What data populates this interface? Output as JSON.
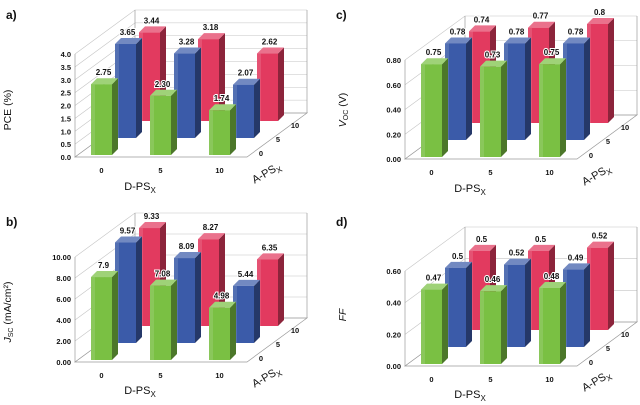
{
  "colors": {
    "green": "#7ac043",
    "blue": "#3b5ba9",
    "red": "#e23a5f",
    "grid": "#c4c4c4",
    "text": "#111111"
  },
  "chart_data": [
    {
      "type": "bar",
      "title": "",
      "panel_label": "a)",
      "ylabel": "PCE (%)",
      "xlabel": "D-PS",
      "xlabel_sub": "X",
      "zlabel": "A-PS",
      "zlabel_sub": "X",
      "categories": [
        "0",
        "5",
        "10"
      ],
      "depth_categories": [
        "0",
        "5",
        "10"
      ],
      "ylim": [
        0,
        4.0
      ],
      "yticks": [
        "0.0",
        "0.5",
        "1.0",
        "1.5",
        "2.0",
        "2.5",
        "3.0",
        "3.5",
        "4.0"
      ],
      "series": [
        {
          "name": "A-PSx 0",
          "color": "green",
          "values": [
            2.75,
            2.3,
            1.74
          ],
          "labels": [
            "2.75",
            "2.30",
            "1.74"
          ]
        },
        {
          "name": "A-PSx 5",
          "color": "blue",
          "values": [
            3.65,
            3.28,
            2.07
          ],
          "labels": [
            "3.65",
            "3.28",
            "2.07"
          ]
        },
        {
          "name": "A-PSx 10",
          "color": "red",
          "values": [
            3.44,
            3.18,
            2.62
          ],
          "labels": [
            "3.44",
            "3.18",
            "2.62"
          ]
        }
      ]
    },
    {
      "type": "bar",
      "title": "",
      "panel_label": "c)",
      "ylabel": "V",
      "ylabel_sub": "OC",
      "ylabel_unit": " (V)",
      "xlabel": "D-PS",
      "xlabel_sub": "X",
      "zlabel": "A-PS",
      "zlabel_sub": "X",
      "categories": [
        "0",
        "5",
        "10"
      ],
      "depth_categories": [
        "0",
        "5",
        "10"
      ],
      "ylim": [
        0,
        0.8
      ],
      "yticks": [
        "0.00",
        "0.20",
        "0.40",
        "0.60",
        "0.80"
      ],
      "series": [
        {
          "name": "A-PSx 0",
          "color": "green",
          "values": [
            0.75,
            0.73,
            0.75
          ],
          "labels": [
            "0.75",
            "0.73",
            "0.75"
          ]
        },
        {
          "name": "A-PSx 5",
          "color": "blue",
          "values": [
            0.78,
            0.78,
            0.78
          ],
          "labels": [
            "0.78",
            "0.78",
            "0.78"
          ]
        },
        {
          "name": "A-PSx 10",
          "color": "red",
          "values": [
            0.74,
            0.77,
            0.8
          ],
          "labels": [
            "0.74",
            "0.77",
            "0.8"
          ]
        }
      ]
    },
    {
      "type": "bar",
      "title": "",
      "panel_label": "b)",
      "ylabel": "J",
      "ylabel_sub": "SC",
      "ylabel_unit": " (mA/cm²)",
      "xlabel": "D-PS",
      "xlabel_sub": "X",
      "zlabel": "A-PS",
      "zlabel_sub": "X",
      "categories": [
        "0",
        "5",
        "10"
      ],
      "depth_categories": [
        "0",
        "5",
        "10"
      ],
      "ylim": [
        0,
        10.0
      ],
      "yticks": [
        "0.00",
        "2.00",
        "4.00",
        "6.00",
        "8.00",
        "10.00"
      ],
      "series": [
        {
          "name": "A-PSx 0",
          "color": "green",
          "values": [
            7.9,
            7.08,
            4.98
          ],
          "labels": [
            "7.9",
            "7.08",
            "4.98"
          ]
        },
        {
          "name": "A-PSx 5",
          "color": "blue",
          "values": [
            9.57,
            8.09,
            5.44
          ],
          "labels": [
            "9.57",
            "8.09",
            "5.44"
          ]
        },
        {
          "name": "A-PSx 10",
          "color": "red",
          "values": [
            9.33,
            8.27,
            6.35
          ],
          "labels": [
            "9.33",
            "8.27",
            "6.35"
          ]
        }
      ]
    },
    {
      "type": "bar",
      "title": "",
      "panel_label": "d)",
      "ylabel": "FF",
      "xlabel": "D-PS",
      "xlabel_sub": "X",
      "zlabel": "A-PS",
      "zlabel_sub": "X",
      "categories": [
        "0",
        "5",
        "10"
      ],
      "depth_categories": [
        "0",
        "5",
        "10"
      ],
      "ylim": [
        0,
        0.6
      ],
      "yticks": [
        "0.00",
        "0.20",
        "0.40",
        "0.60"
      ],
      "series": [
        {
          "name": "A-PSx 0",
          "color": "green",
          "values": [
            0.47,
            0.46,
            0.48
          ],
          "labels": [
            "0.47",
            "0.46",
            "0.48"
          ]
        },
        {
          "name": "A-PSx 5",
          "color": "blue",
          "values": [
            0.5,
            0.52,
            0.49
          ],
          "labels": [
            "0.5",
            "0.52",
            "0.49"
          ]
        },
        {
          "name": "A-PSx 10",
          "color": "red",
          "values": [
            0.5,
            0.5,
            0.52
          ],
          "labels": [
            "0.5",
            "0.5",
            "0.52"
          ]
        }
      ]
    }
  ]
}
